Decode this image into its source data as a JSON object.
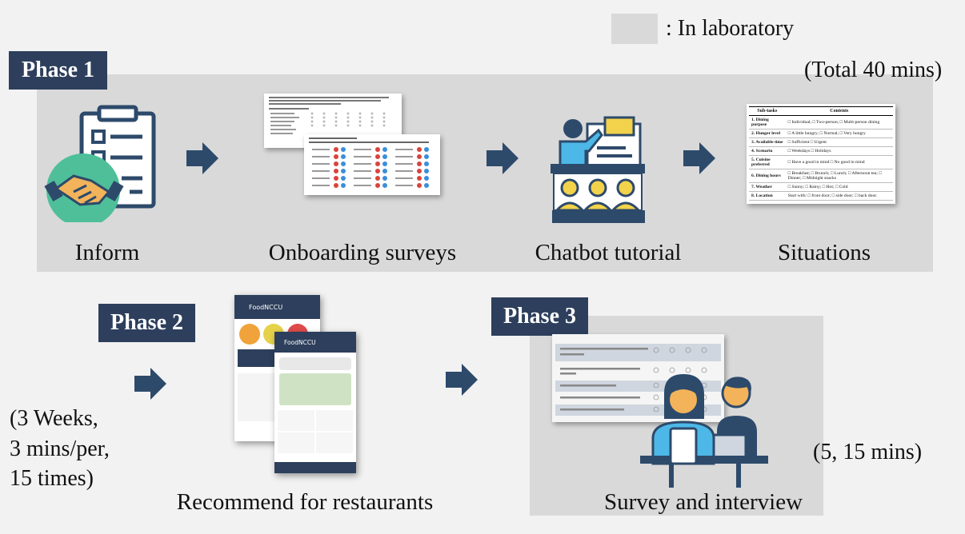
{
  "legend": {
    "text": ": In laboratory",
    "swatch_color": "#d9d9d9"
  },
  "colors": {
    "phase_bg": "#2d3f5c",
    "arrow": "#2d4a6b",
    "lab_bg": "#d9d9d9",
    "page_bg": "#f2f2f2"
  },
  "phase1": {
    "title": "Phase 1",
    "duration": "(Total 40 mins)",
    "steps": [
      {
        "label": "Inform",
        "icon": "handshake-form-icon"
      },
      {
        "label": "Onboarding surveys",
        "icon": "survey-document-icon"
      },
      {
        "label": "Chatbot tutorial",
        "icon": "presentation-icon"
      },
      {
        "label": "Situations",
        "icon": "situations-table-icon"
      }
    ]
  },
  "phase2": {
    "title": "Phase 2",
    "duration_lines": [
      "(3 Weeks,",
      "3 mins/per,",
      "15 times)"
    ],
    "step_label": "Recommend  for restaurants",
    "app_name": "FoodNCCU"
  },
  "phase3": {
    "title": "Phase 3",
    "duration": "(5, 15 mins)",
    "step_label": "Survey and interview"
  },
  "situations_table": {
    "headers": [
      "Sub-tasks",
      "Contents"
    ],
    "rows": [
      [
        "1. Dining purpose",
        "□ Individual; □ Two-person; □ Multi-person dining"
      ],
      [
        "2. Hunger level",
        "□ A little hungry; □ Normal; □ Very hungry"
      ],
      [
        "3. Available time",
        "□ Sufficient                    □ Urgent"
      ],
      [
        "4. Scenario",
        "□ Weekdays                    □ Holidays"
      ],
      [
        "5. Cuisine preferred",
        "□ Have a good in mind         □ No good in mind"
      ],
      [
        "6. Dining hours",
        "□ Breakfast; □ Brunch; □ Lunch; □ Afternoon tea; □ Dinner; □ Midnight snacks"
      ],
      [
        "7. Weather",
        "□ Sunny; □ Rainy; □ Hot; □ Cold"
      ],
      [
        "8. Location",
        "Start with: □ front door; □ side door; □ back door."
      ]
    ]
  }
}
